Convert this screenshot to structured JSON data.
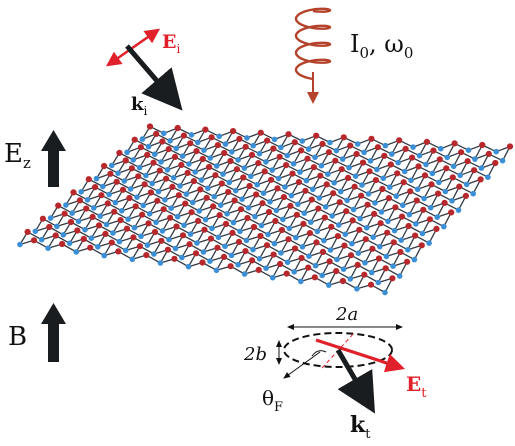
{
  "colors": {
    "atom_red": "#b8272b",
    "atom_blue": "#3a8fd6",
    "bond": "#333a44",
    "field_red": "#e0202a",
    "arrow_dark": "#1a1d20",
    "spiral": "#b5422a"
  },
  "labels": {
    "incident_field": {
      "main": "E",
      "sub": "i"
    },
    "incident_wavevector": {
      "main": "k",
      "sub": "i"
    },
    "intensity_freq": {
      "i_main": "I",
      "i_sub": "0",
      "sep": ", ",
      "w_main": "ω",
      "w_sub": "0"
    },
    "electric_field_z": {
      "main": "E",
      "sub": "z"
    },
    "magnetic_field": {
      "main": "B"
    },
    "ellipse_major": "2a",
    "ellipse_minor": "2b",
    "faraday_angle": {
      "main": "θ",
      "sub": "F"
    },
    "transmitted_field": {
      "main": "E",
      "sub": "t"
    },
    "transmitted_wavevector": {
      "main": "k",
      "sub": "t"
    }
  }
}
